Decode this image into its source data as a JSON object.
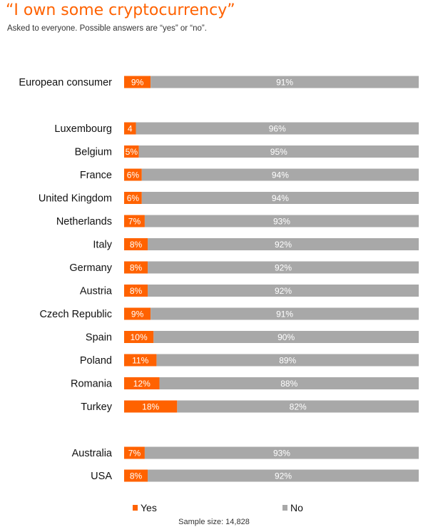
{
  "header": {
    "title": "“I own some cryptocurrency”",
    "subtitle": "Asked to everyone. Possible answers are “yes” or “no”."
  },
  "footer": {
    "sample_size": "Sample size: 14,828"
  },
  "colors": {
    "yes": "#ff6200",
    "no": "#a8a8a8"
  },
  "chart_data": {
    "type": "bar",
    "orientation": "horizontal",
    "stacked": true,
    "percent_scale": true,
    "xlim": [
      0,
      100
    ],
    "grid": false,
    "legend_placement": "bottom",
    "categories": [
      "European consumer",
      "Luxembourg",
      "Belgium",
      "France",
      "United Kingdom",
      "Netherlands",
      "Italy",
      "Germany",
      "Austria",
      "Czech Republic",
      "Spain",
      "Poland",
      "Romania",
      "Turkey",
      "Australia",
      "USA"
    ],
    "groups": [
      [
        0
      ],
      [
        1,
        2,
        3,
        4,
        5,
        6,
        7,
        8,
        9,
        10,
        11,
        12,
        13
      ],
      [
        14,
        15
      ]
    ],
    "series": [
      {
        "name": "Yes",
        "values": [
          9,
          4,
          5,
          6,
          6,
          7,
          8,
          8,
          8,
          9,
          10,
          11,
          12,
          18,
          7,
          8
        ],
        "labels": [
          "9%",
          "4",
          "5%",
          "6%",
          "6%",
          "7%",
          "8%",
          "8%",
          "8%",
          "9%",
          "10%",
          "11%",
          "12%",
          "18%",
          "7%",
          "8%"
        ]
      },
      {
        "name": "No",
        "values": [
          91,
          96,
          95,
          94,
          94,
          93,
          92,
          92,
          92,
          91,
          90,
          89,
          88,
          82,
          93,
          92
        ],
        "labels": [
          "91%",
          "96%",
          "95%",
          "94%",
          "94%",
          "93%",
          "92%",
          "92%",
          "92%",
          "91%",
          "90%",
          "89%",
          "88%",
          "82%",
          "93%",
          "92%"
        ]
      }
    ]
  }
}
